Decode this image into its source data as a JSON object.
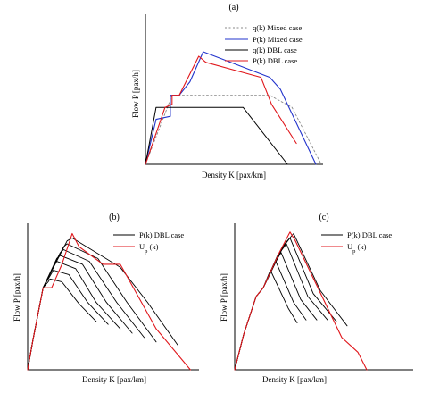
{
  "colors": {
    "black": "#000000",
    "blue": "#2233cc",
    "red": "#e0161b",
    "gray_dotted": "#888888"
  },
  "chart_data": [
    {
      "id": "a",
      "type": "line",
      "panel_label": "(a)",
      "xlabel": "Density K [pax/km]",
      "ylabel": "Flow P [pax/h]",
      "xlim": [
        0,
        200
      ],
      "ylim": [
        0,
        100
      ],
      "grid": false,
      "ticks": "none",
      "legend": {
        "position": "top-right",
        "entries": [
          {
            "label": "q(k) Mixed case",
            "series": 0
          },
          {
            "label": "P(k) Mixed case",
            "series": 1
          },
          {
            "label": "q(k) DBL case",
            "series": 2
          },
          {
            "label": "P(k) DBL case",
            "series": 3
          }
        ]
      },
      "series": [
        {
          "name": "q(k) Mixed case",
          "color": "#888888",
          "dash": "2,2.5",
          "width": 0.9,
          "x": [
            0,
            30,
            140,
            165,
            198
          ],
          "y": [
            0,
            46,
            46,
            38,
            0
          ]
        },
        {
          "name": "P(k) Mixed case",
          "color": "#2233cc",
          "dash": "",
          "width": 1.1,
          "x": [
            0,
            12,
            28,
            28,
            38,
            50,
            65,
            140,
            152,
            192
          ],
          "y": [
            0,
            30,
            32,
            46,
            46,
            55,
            75,
            58,
            50,
            0
          ]
        },
        {
          "name": "q(k) DBL case",
          "color": "#000000",
          "dash": "",
          "width": 1.0,
          "x": [
            0,
            12,
            110,
            160
          ],
          "y": [
            0,
            38,
            38,
            0
          ]
        },
        {
          "name": "P(k) DBL case",
          "color": "#e0161b",
          "dash": "",
          "width": 1.1,
          "x": [
            0,
            22,
            30,
            30,
            38,
            60,
            68,
            130,
            142,
            170
          ],
          "y": [
            0,
            38,
            40,
            46,
            46,
            72,
            68,
            58,
            40,
            14
          ]
        }
      ]
    },
    {
      "id": "b",
      "type": "line",
      "panel_label": "(b)",
      "xlabel": "Density K [pax/km]",
      "ylabel": "Flow P [pax/h]",
      "xlim": [
        0,
        200
      ],
      "ylim": [
        0,
        100
      ],
      "grid": false,
      "ticks": "none",
      "legend": {
        "position": "top-right",
        "entries": [
          {
            "label": "P(k) DBL case",
            "series": 0
          },
          {
            "label": "U",
            "subscript": "p",
            "suffix": " (k)",
            "series": 1
          }
        ]
      },
      "series": [
        {
          "name": "P(k) DBL case",
          "color": "#000000",
          "dash": "",
          "width": 0.9,
          "lines": [
            {
              "x": [
                0,
                6,
                18,
                24,
                26,
                40,
                60,
                80
              ],
              "y": [
                0,
                20,
                56,
                60,
                62,
                60,
                45,
                33
              ]
            },
            {
              "x": [
                0,
                6,
                18,
                28,
                30,
                48,
                70,
                94
              ],
              "y": [
                0,
                20,
                56,
                66,
                68,
                65,
                46,
                31
              ]
            },
            {
              "x": [
                0,
                6,
                18,
                30,
                34,
                56,
                80,
                108
              ],
              "y": [
                0,
                20,
                56,
                70,
                74,
                69,
                46,
                28
              ]
            },
            {
              "x": [
                0,
                6,
                18,
                34,
                38,
                64,
                92,
                122
              ],
              "y": [
                0,
                20,
                56,
                76,
                78,
                72,
                46,
                25
              ]
            },
            {
              "x": [
                0,
                6,
                18,
                38,
                42,
                72,
                104,
                136
              ],
              "y": [
                0,
                20,
                56,
                80,
                82,
                74,
                46,
                22
              ]
            },
            {
              "x": [
                0,
                6,
                18,
                42,
                46,
                82,
                116,
                150
              ],
              "y": [
                0,
                20,
                56,
                84,
                86,
                76,
                46,
                19
              ]
            },
            {
              "x": [
                0,
                6,
                18,
                46,
                52,
                108,
                140,
                175
              ],
              "y": [
                0,
                20,
                56,
                88,
                90,
                70,
                46,
                17
              ]
            }
          ]
        },
        {
          "name": "U_p(k)",
          "color": "#e0161b",
          "dash": "",
          "width": 1.1,
          "x": [
            0,
            6,
            18,
            28,
            40,
            52,
            60,
            88,
            108,
            112,
            150,
            190
          ],
          "y": [
            0,
            20,
            56,
            56,
            72,
            93,
            84,
            72,
            72,
            68,
            28,
            0
          ]
        }
      ]
    },
    {
      "id": "c",
      "type": "line",
      "panel_label": "(c)",
      "xlabel": "Density K [pax/km]",
      "ylabel": "Flow P [pax/h]",
      "xlim": [
        0,
        200
      ],
      "ylim": [
        0,
        100
      ],
      "grid": false,
      "ticks": "none",
      "legend": {
        "position": "top-right",
        "entries": [
          {
            "label": "P(k) DBL case",
            "series": 0
          },
          {
            "label": "U",
            "subscript": "p",
            "suffix": " (k)",
            "series": 1
          }
        ]
      },
      "series": [
        {
          "name": "P(k) DBL case",
          "color": "#000000",
          "dash": "",
          "width": 0.9,
          "lines": [
            {
              "x": [
                0,
                10,
                24,
                32,
                36,
                40,
                60,
                70
              ],
              "y": [
                0,
                24,
                50,
                56,
                62,
                68,
                42,
                32
              ]
            },
            {
              "x": [
                0,
                10,
                24,
                32,
                40,
                46,
                66,
                80
              ],
              "y": [
                0,
                24,
                50,
                56,
                66,
                74,
                46,
                34
              ]
            },
            {
              "x": [
                0,
                10,
                24,
                32,
                44,
                52,
                74,
                92
              ],
              "y": [
                0,
                24,
                50,
                56,
                72,
                80,
                48,
                34
              ]
            },
            {
              "x": [
                0,
                10,
                24,
                32,
                48,
                58,
                82,
                104
              ],
              "y": [
                0,
                24,
                50,
                56,
                78,
                86,
                50,
                34
              ]
            },
            {
              "x": [
                0,
                10,
                24,
                32,
                52,
                62,
                88,
                114
              ],
              "y": [
                0,
                24,
                50,
                56,
                82,
                90,
                52,
                33
              ]
            },
            {
              "x": [
                0,
                10,
                24,
                32,
                56,
                66,
                96,
                126
              ],
              "y": [
                0,
                24,
                50,
                56,
                86,
                93,
                54,
                30
              ]
            }
          ]
        },
        {
          "name": "U_p(k)",
          "color": "#e0161b",
          "dash": "",
          "width": 1.1,
          "x": [
            0,
            10,
            24,
            32,
            50,
            62,
            68,
            120,
            138,
            148
          ],
          "y": [
            0,
            24,
            50,
            56,
            80,
            94,
            88,
            22,
            12,
            0
          ]
        }
      ]
    }
  ]
}
